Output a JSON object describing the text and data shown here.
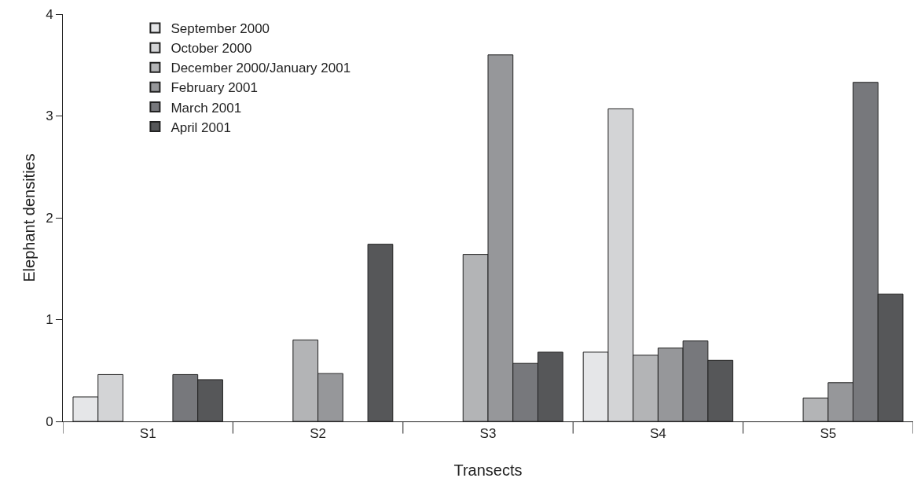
{
  "chart_data": {
    "type": "bar",
    "xlabel": "Transects",
    "ylabel": "Elephant densities",
    "categories": [
      "S1",
      "S2",
      "S3",
      "S4",
      "S5"
    ],
    "series": [
      {
        "name": "September 2000",
        "color": "#e5e6e8",
        "values": [
          0.24,
          null,
          null,
          0.68,
          null
        ]
      },
      {
        "name": "October 2000",
        "color": "#d3d4d6",
        "values": [
          0.46,
          null,
          null,
          3.07,
          null
        ]
      },
      {
        "name": "December 2000/January 2001",
        "color": "#b3b4b6",
        "values": [
          null,
          0.8,
          1.64,
          0.65,
          0.23
        ]
      },
      {
        "name": "February 2001",
        "color": "#96979a",
        "values": [
          null,
          0.47,
          3.6,
          0.72,
          0.38
        ]
      },
      {
        "name": "March 2001",
        "color": "#77787c",
        "values": [
          0.46,
          null,
          0.57,
          0.79,
          3.33
        ]
      },
      {
        "name": "April 2001",
        "color": "#565759",
        "values": [
          0.41,
          1.74,
          0.68,
          0.6,
          1.25
        ]
      }
    ],
    "ylim": [
      0,
      4
    ],
    "yticks": [
      0,
      1,
      2,
      3,
      4
    ],
    "legend": "top left"
  }
}
